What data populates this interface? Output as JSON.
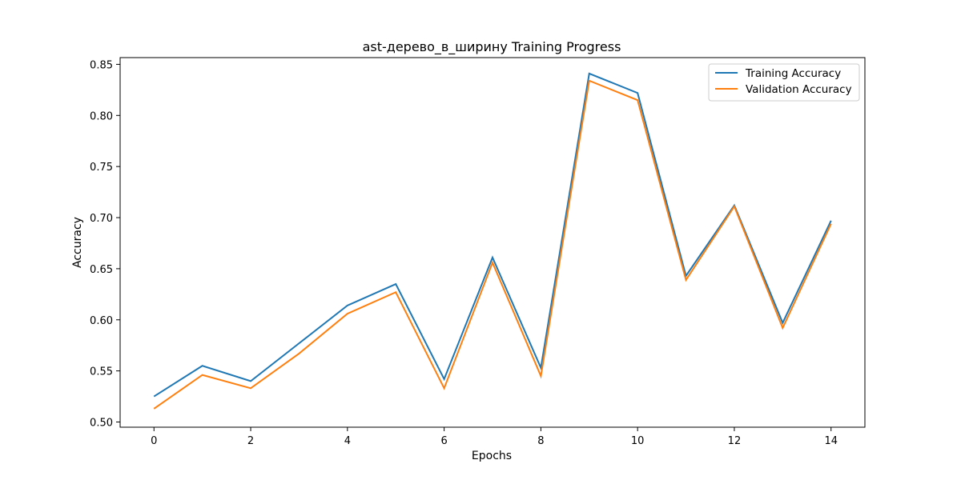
{
  "chart_data": {
    "type": "line",
    "title": "ast-дерево_в_ширину Training Progress",
    "xlabel": "Epochs",
    "ylabel": "Accuracy",
    "x": [
      0,
      1,
      2,
      3,
      4,
      5,
      6,
      7,
      8,
      9,
      10,
      11,
      12,
      13,
      14
    ],
    "xlim": [
      -0.7,
      14.7
    ],
    "ylim": [
      0.4949,
      0.8566
    ],
    "xticks": [
      0,
      2,
      4,
      6,
      8,
      10,
      12,
      14
    ],
    "yticks": [
      0.5,
      0.55,
      0.6,
      0.65,
      0.7,
      0.75,
      0.8,
      0.85
    ],
    "ytick_labels": [
      "0.50",
      "0.55",
      "0.60",
      "0.65",
      "0.70",
      "0.75",
      "0.80",
      "0.85"
    ],
    "grid": false,
    "legend_position": "top-right",
    "series": [
      {
        "name": "Training Accuracy",
        "color": "#1f77b4",
        "values": [
          0.525,
          0.555,
          0.54,
          0.577,
          0.614,
          0.635,
          0.542,
          0.661,
          0.553,
          0.841,
          0.822,
          0.643,
          0.712,
          0.597,
          0.697
        ]
      },
      {
        "name": "Validation Accuracy",
        "color": "#ff7f0e",
        "values": [
          0.513,
          0.546,
          0.533,
          0.567,
          0.606,
          0.627,
          0.533,
          0.656,
          0.545,
          0.834,
          0.815,
          0.639,
          0.711,
          0.592,
          0.694
        ]
      }
    ]
  }
}
